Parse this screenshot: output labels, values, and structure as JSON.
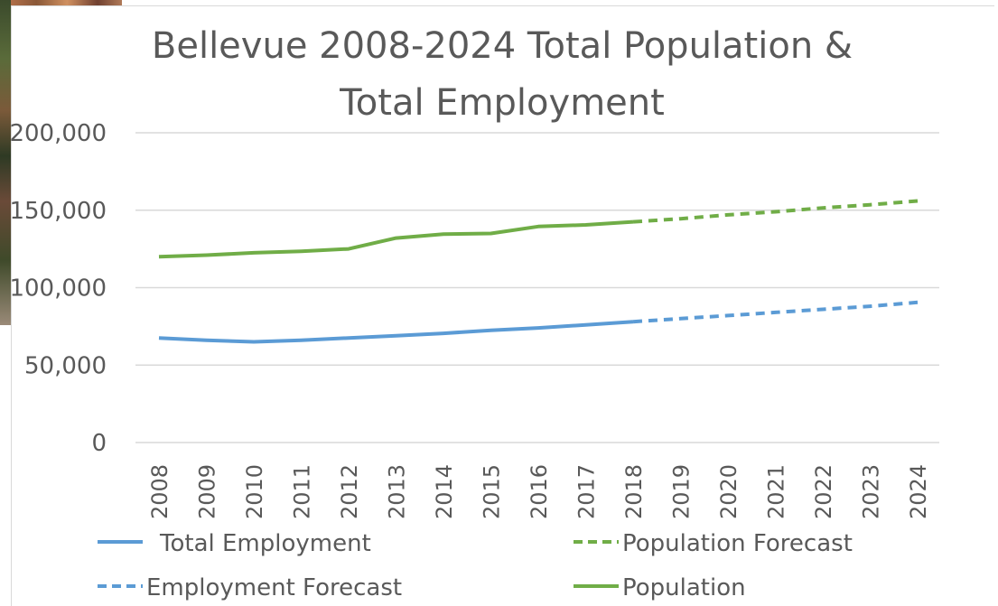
{
  "chart_data": {
    "type": "line",
    "title_lines": [
      "Bellevue 2008-2024 Total Population &",
      "Total Employment"
    ],
    "xlabel": "",
    "ylabel": "",
    "ylim": [
      0,
      200000
    ],
    "yticks": [
      "0",
      "50,000",
      "100,000",
      "150,000",
      "200,000"
    ],
    "categories": [
      "2008",
      "2009",
      "2010",
      "2011",
      "2012",
      "2013",
      "2014",
      "2015",
      "2016",
      "2017",
      "2018",
      "2019",
      "2020",
      "2021",
      "2022",
      "2023",
      "2024"
    ],
    "grid": true,
    "legend_position": "bottom",
    "series": [
      {
        "name": "Total Employment",
        "color": "#5b9bd5",
        "style": "solid",
        "x": [
          "2008",
          "2009",
          "2010",
          "2011",
          "2012",
          "2013",
          "2014",
          "2015",
          "2016",
          "2017",
          "2018"
        ],
        "values": [
          67500,
          66000,
          65000,
          66000,
          67500,
          69000,
          70500,
          72500,
          74000,
          76000,
          78000
        ]
      },
      {
        "name": "Population Forecast",
        "color": "#70ad47",
        "style": "dashed",
        "x": [
          "2018",
          "2019",
          "2020",
          "2021",
          "2022",
          "2023",
          "2024"
        ],
        "values": [
          142500,
          144500,
          147000,
          149000,
          151500,
          153500,
          156000
        ]
      },
      {
        "name": "Employment Forecast",
        "color": "#5b9bd5",
        "style": "dashed",
        "x": [
          "2018",
          "2019",
          "2020",
          "2021",
          "2022",
          "2023",
          "2024"
        ],
        "values": [
          78000,
          80000,
          82000,
          84000,
          86000,
          88000,
          90500
        ]
      },
      {
        "name": "Population",
        "color": "#70ad47",
        "style": "solid",
        "x": [
          "2008",
          "2009",
          "2010",
          "2011",
          "2012",
          "2013",
          "2014",
          "2015",
          "2016",
          "2017",
          "2018"
        ],
        "values": [
          120000,
          121000,
          122500,
          123500,
          125000,
          132000,
          134500,
          135000,
          139500,
          140500,
          142500
        ]
      }
    ]
  }
}
